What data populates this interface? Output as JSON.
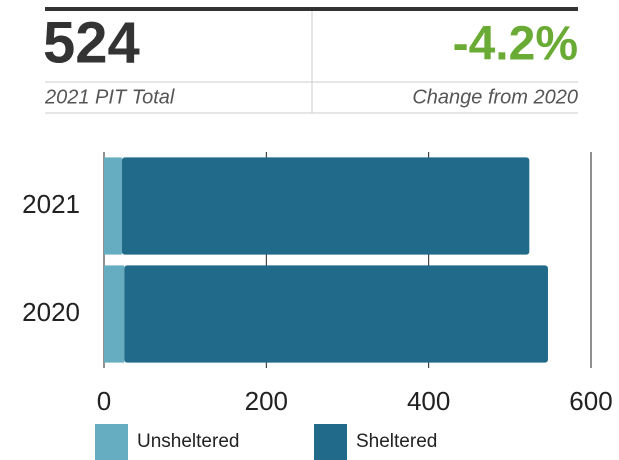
{
  "stats": [
    {
      "value": "524",
      "label": "2021 PIT Total"
    },
    {
      "value": "-4.2%",
      "label": "Change from 2020"
    }
  ],
  "chart_data": {
    "type": "bar",
    "orientation": "horizontal",
    "stacked": true,
    "categories": [
      "2021",
      "2020"
    ],
    "series": [
      {
        "name": "Unsheltered",
        "color": "#67adc1",
        "values": [
          22,
          25
        ]
      },
      {
        "name": "Sheltered",
        "color": "#216a8a",
        "values": [
          502,
          522
        ]
      }
    ],
    "xlim": [
      0,
      600
    ],
    "xticks": [
      0,
      200,
      400,
      600
    ],
    "grid": true,
    "legend": "bottom"
  }
}
